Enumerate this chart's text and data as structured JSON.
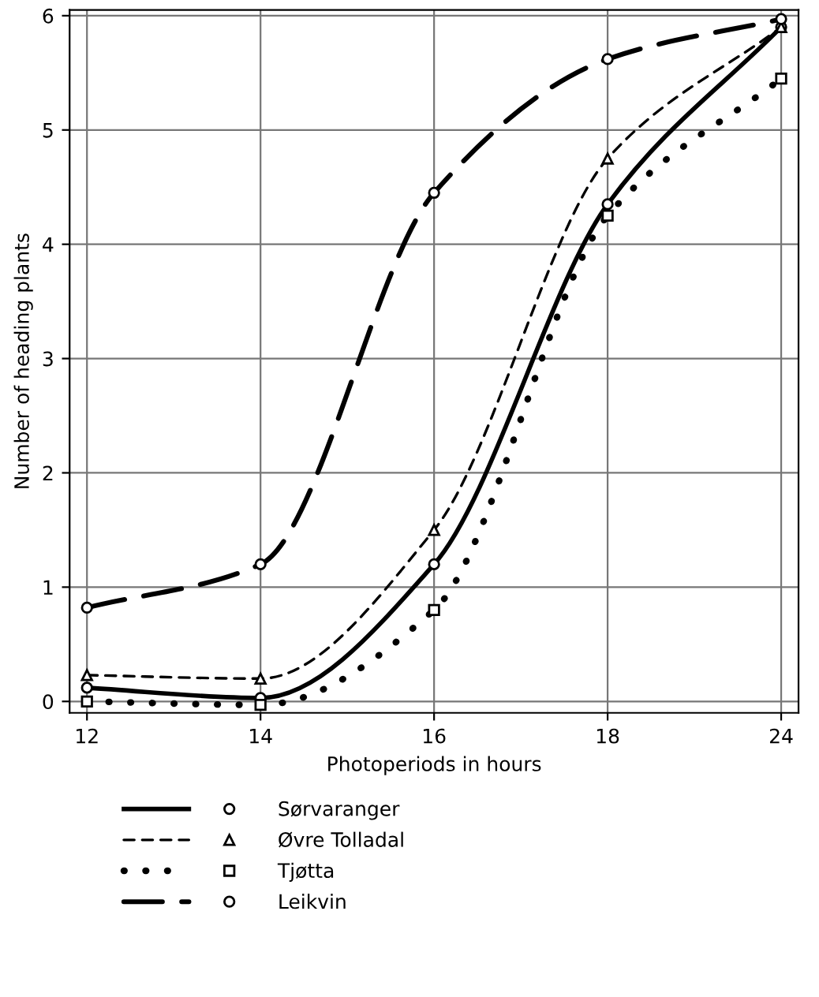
{
  "chart_data": {
    "type": "line",
    "xlabel": "Photoperiods in hours",
    "ylabel": "Number of heading plants",
    "categories": [
      "12",
      "14",
      "16",
      "18",
      "24"
    ],
    "series": [
      {
        "name": "Sørvaranger",
        "color": "#000000",
        "marker": "circle",
        "line_style": "solid",
        "values": [
          0.12,
          0.03,
          1.2,
          4.35,
          5.9
        ]
      },
      {
        "name": "Øvre Tolladal",
        "color": "#000000",
        "marker": "triangle",
        "line_style": "dashed",
        "values": [
          0.23,
          0.2,
          1.5,
          4.75,
          5.9
        ]
      },
      {
        "name": "Tjøtta",
        "color": "#000000",
        "marker": "square",
        "line_style": "dotted",
        "values": [
          0.0,
          -0.03,
          0.8,
          4.25,
          5.45
        ]
      },
      {
        "name": "Leikvin",
        "color": "#000000",
        "marker": "circle",
        "line_style": "long dashed",
        "values": [
          0.82,
          1.2,
          4.45,
          5.62,
          5.97
        ]
      }
    ],
    "ylim": [
      -0.1,
      6.05
    ],
    "yticks": [
      0,
      1,
      2,
      3,
      4,
      5,
      6
    ],
    "grid": true,
    "legend": "bottom"
  }
}
